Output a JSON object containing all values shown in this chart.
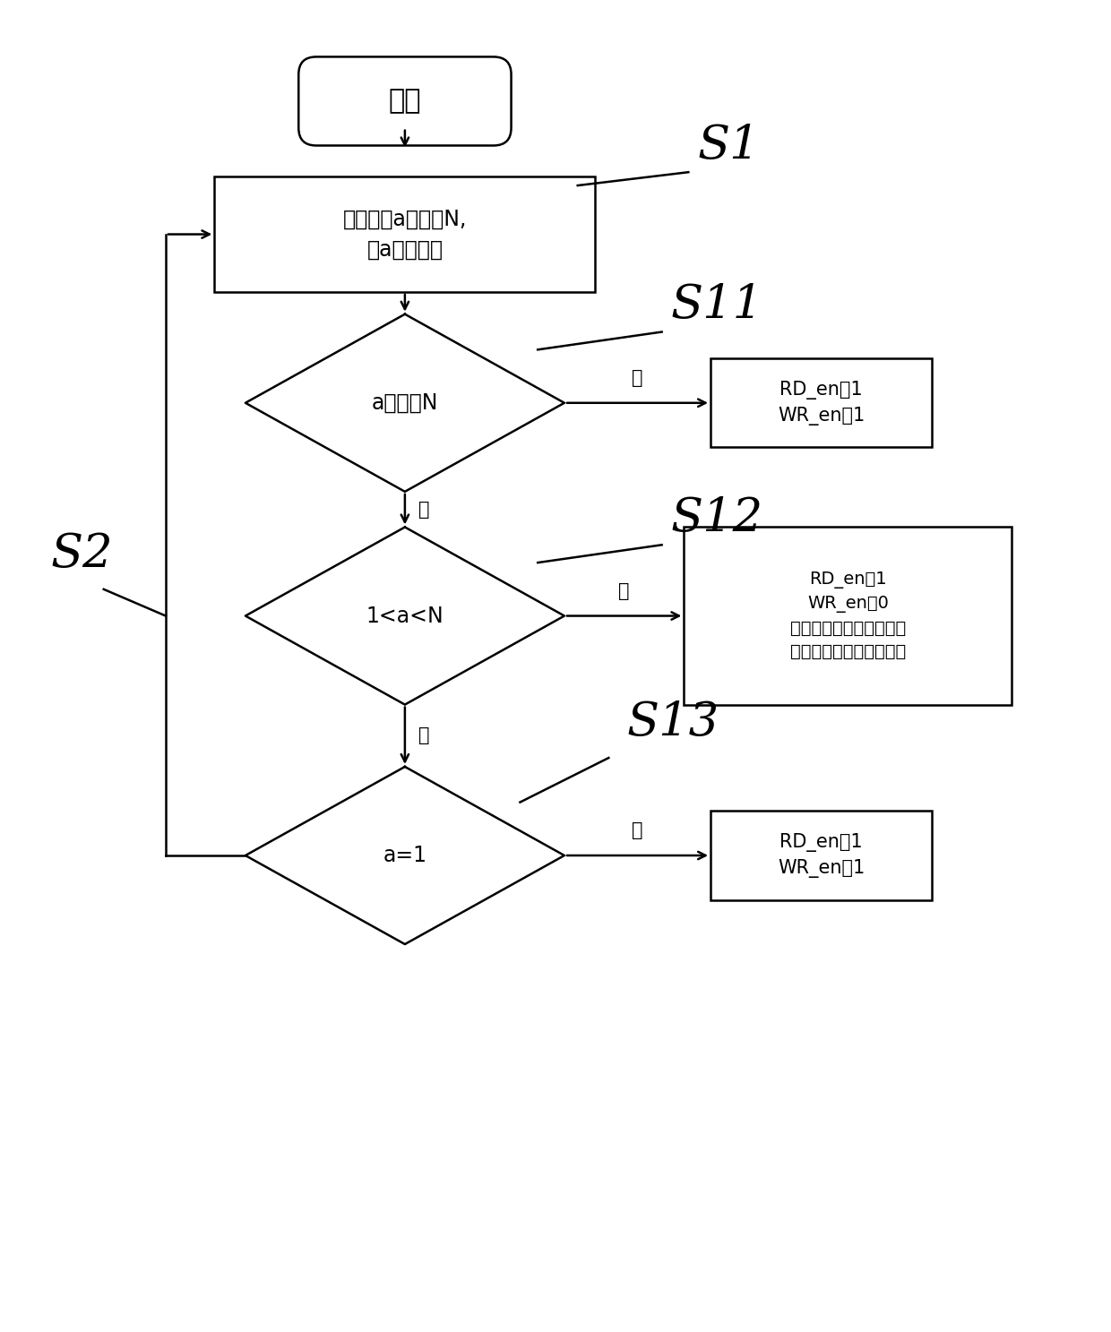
{
  "bg_color": "#ffffff",
  "start_label": "开始",
  "s1_label": "S1",
  "s2_label": "S2",
  "s11_label": "S11",
  "s12_label": "S12",
  "s13_label": "S13",
  "process_box_text": "将信号量a赋值为N,\n对a进行自减",
  "diamond1_text": "a是否为N",
  "diamond2_text": "1<a<N",
  "diamond3_text": "a=1",
  "yes_label": "是",
  "no_label": "否",
  "box1_text": "RD_en置1\nWR_en置1",
  "box2_text": "RD_en置1\nWR_en置0\n将数据与上一个数据作比\n较，取其最大值与最小值",
  "box3_text": "RD_en置1\nWR_en置1",
  "line_color": "#000000",
  "fill_color": "#ffffff",
  "text_color": "#000000"
}
